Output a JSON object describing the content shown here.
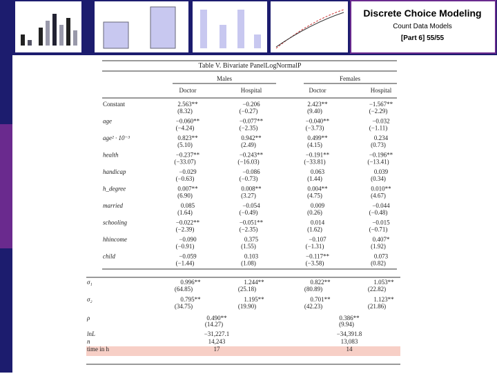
{
  "header": {
    "title": "Discrete Choice Modeling",
    "subtitle": "Count Data Models",
    "part": "[Part 6]   55/55"
  },
  "table": {
    "title": "Table V. Bivariate PanelLogNormalP",
    "groups": [
      "Males",
      "Females"
    ],
    "columns": [
      "Doctor",
      "Hospital",
      "Doctor",
      "Hospital"
    ],
    "rows": [
      {
        "label": "Constant",
        "values": [
          "2.563**",
          "−0.206",
          "2.423**",
          "−1.567**"
        ],
        "tstats": [
          "(8.32)",
          "(−0.27)",
          "(9.40)",
          "(−2.29)"
        ]
      },
      {
        "label": "age",
        "values": [
          "−0.060**",
          "−0.077**",
          "−0.040**",
          "−0.032"
        ],
        "tstats": [
          "(−4.24)",
          "(−2.35)",
          "(−3.73)",
          "(−1.11)"
        ]
      },
      {
        "label": "age² · 10⁻³",
        "values": [
          "0.823**",
          "0.942**",
          "0.499**",
          "0.234"
        ],
        "tstats": [
          "(5.10)",
          "(2.49)",
          "(4.15)",
          "(0.73)"
        ]
      },
      {
        "label": "health",
        "values": [
          "−0.237**",
          "−0.243**",
          "−0.191**",
          "−0.196**"
        ],
        "tstats": [
          "(−33.07)",
          "(−16.03)",
          "(−33.81)",
          "(−13.41)"
        ]
      },
      {
        "label": "handicap",
        "values": [
          "−0.029",
          "−0.086",
          "0.063",
          "0.039"
        ],
        "tstats": [
          "(−0.63)",
          "(−0.73)",
          "(1.44)",
          "(0.34)"
        ]
      },
      {
        "label": "h_degree",
        "values": [
          "0.007**",
          "0.008**",
          "0.004**",
          "0.010**"
        ],
        "tstats": [
          "(6.90)",
          "(3.27)",
          "(4.75)",
          "(4.67)"
        ]
      },
      {
        "label": "married",
        "values": [
          "0.085",
          "−0.054",
          "0.009",
          "−0.044"
        ],
        "tstats": [
          "(1.64)",
          "(−0.49)",
          "(0.26)",
          "(−0.48)"
        ]
      },
      {
        "label": "schooling",
        "values": [
          "−0.022**",
          "−0.051**",
          "0.014",
          "−0.015"
        ],
        "tstats": [
          "(−2.39)",
          "(−2.35)",
          "(1.62)",
          "(−0.71)"
        ]
      },
      {
        "label": "hhincome",
        "values": [
          "−0.090",
          "0.375",
          "−0.107",
          "0.407*"
        ],
        "tstats": [
          "(−0.91)",
          "(1.55)",
          "(−1.31)",
          "(1.92)"
        ]
      },
      {
        "label": "child",
        "values": [
          "−0.059",
          "0.103",
          "−0.117**",
          "0.073"
        ],
        "tstats": [
          "(−1.44)",
          "(1.08)",
          "(−3.58)",
          "(0.82)"
        ]
      }
    ],
    "sigma_rows": [
      {
        "label": "σ₁",
        "values": [
          "0.996**",
          "1.244**",
          "0.822**",
          "1.053**"
        ],
        "tstats": [
          "(64.85)",
          "(25.18)",
          "(80.89)",
          "(22.82)"
        ]
      },
      {
        "label": "σ₂",
        "values": [
          "0.795**",
          "1.195**",
          "0.701**",
          "1.123**"
        ],
        "tstats": [
          "(34.75)",
          "(19.90)",
          "(42.23)",
          "(21.86)"
        ]
      }
    ],
    "rho": {
      "label": "ρ",
      "values": [
        "0.490**",
        "0.386**"
      ],
      "tstats": [
        "(14.27)",
        "(9.94)"
      ]
    },
    "summary_rows": [
      {
        "label": "lnL",
        "values": [
          "−31,227.1",
          "−34,391.8"
        ]
      },
      {
        "label": "n",
        "values": [
          "14,243",
          "13,083"
        ]
      },
      {
        "label": "time in h",
        "values": [
          "17",
          "14"
        ]
      }
    ]
  }
}
